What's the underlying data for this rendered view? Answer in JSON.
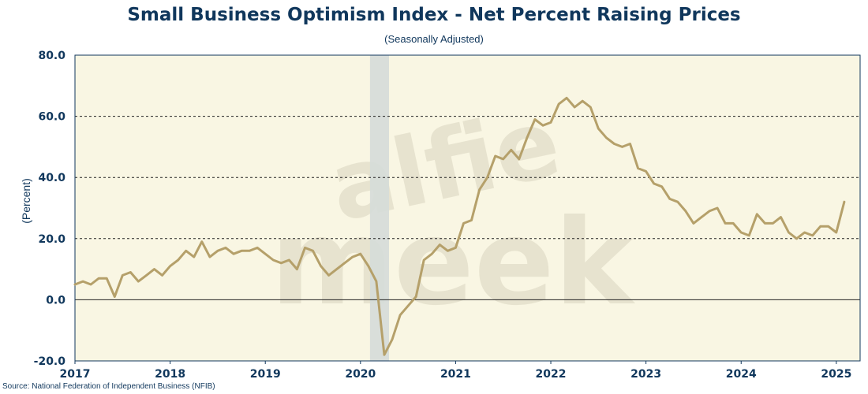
{
  "chart_data": {
    "type": "line",
    "title": "Small Business Optimism Index - Net Percent Raising Prices",
    "subtitle": "(Seasonally Adjusted)",
    "xlabel": "",
    "ylabel": "(Percent)",
    "source": "Source: National Federation of Independent Business (NFIB)",
    "watermark": "alfie meek",
    "ylim": [
      -20,
      80
    ],
    "y_ticks": [
      "-20.0",
      "0.0",
      "20.0",
      "40.0",
      "60.0",
      "80.0"
    ],
    "x_range": [
      2017.0,
      2025.25
    ],
    "x_ticks": [
      "2017",
      "2018",
      "2019",
      "2020",
      "2021",
      "2022",
      "2023",
      "2024",
      "2025"
    ],
    "recession_shading": [
      2020.1,
      2020.3
    ],
    "grid": "horizontal dashed",
    "colors": {
      "line": "#b5a06a",
      "background": "#f9f6e3",
      "text": "#10375c",
      "recession": "#d5dbd8"
    },
    "series": [
      {
        "x_start": "2017-01",
        "frequency": "monthly",
        "values": [
          5,
          6,
          5,
          7,
          7,
          1,
          8,
          9,
          6,
          8,
          10,
          8,
          11,
          13,
          16,
          14,
          19,
          14,
          16,
          17,
          15,
          16,
          16,
          17,
          15,
          13,
          12,
          13,
          10,
          17,
          16,
          11,
          8,
          10,
          12,
          14,
          15,
          11,
          6,
          -18,
          -13,
          -5,
          -2,
          1,
          13,
          15,
          18,
          16,
          17,
          25,
          26,
          36,
          40,
          47,
          46,
          49,
          46,
          53,
          59,
          57,
          58,
          64,
          66,
          63,
          65,
          63,
          56,
          53,
          51,
          50,
          51,
          43,
          42,
          38,
          37,
          33,
          32,
          29,
          25,
          27,
          29,
          30,
          25,
          25,
          22,
          21,
          28,
          25,
          25,
          27,
          22,
          20,
          22,
          21,
          24,
          24,
          22,
          32
        ]
      }
    ]
  }
}
